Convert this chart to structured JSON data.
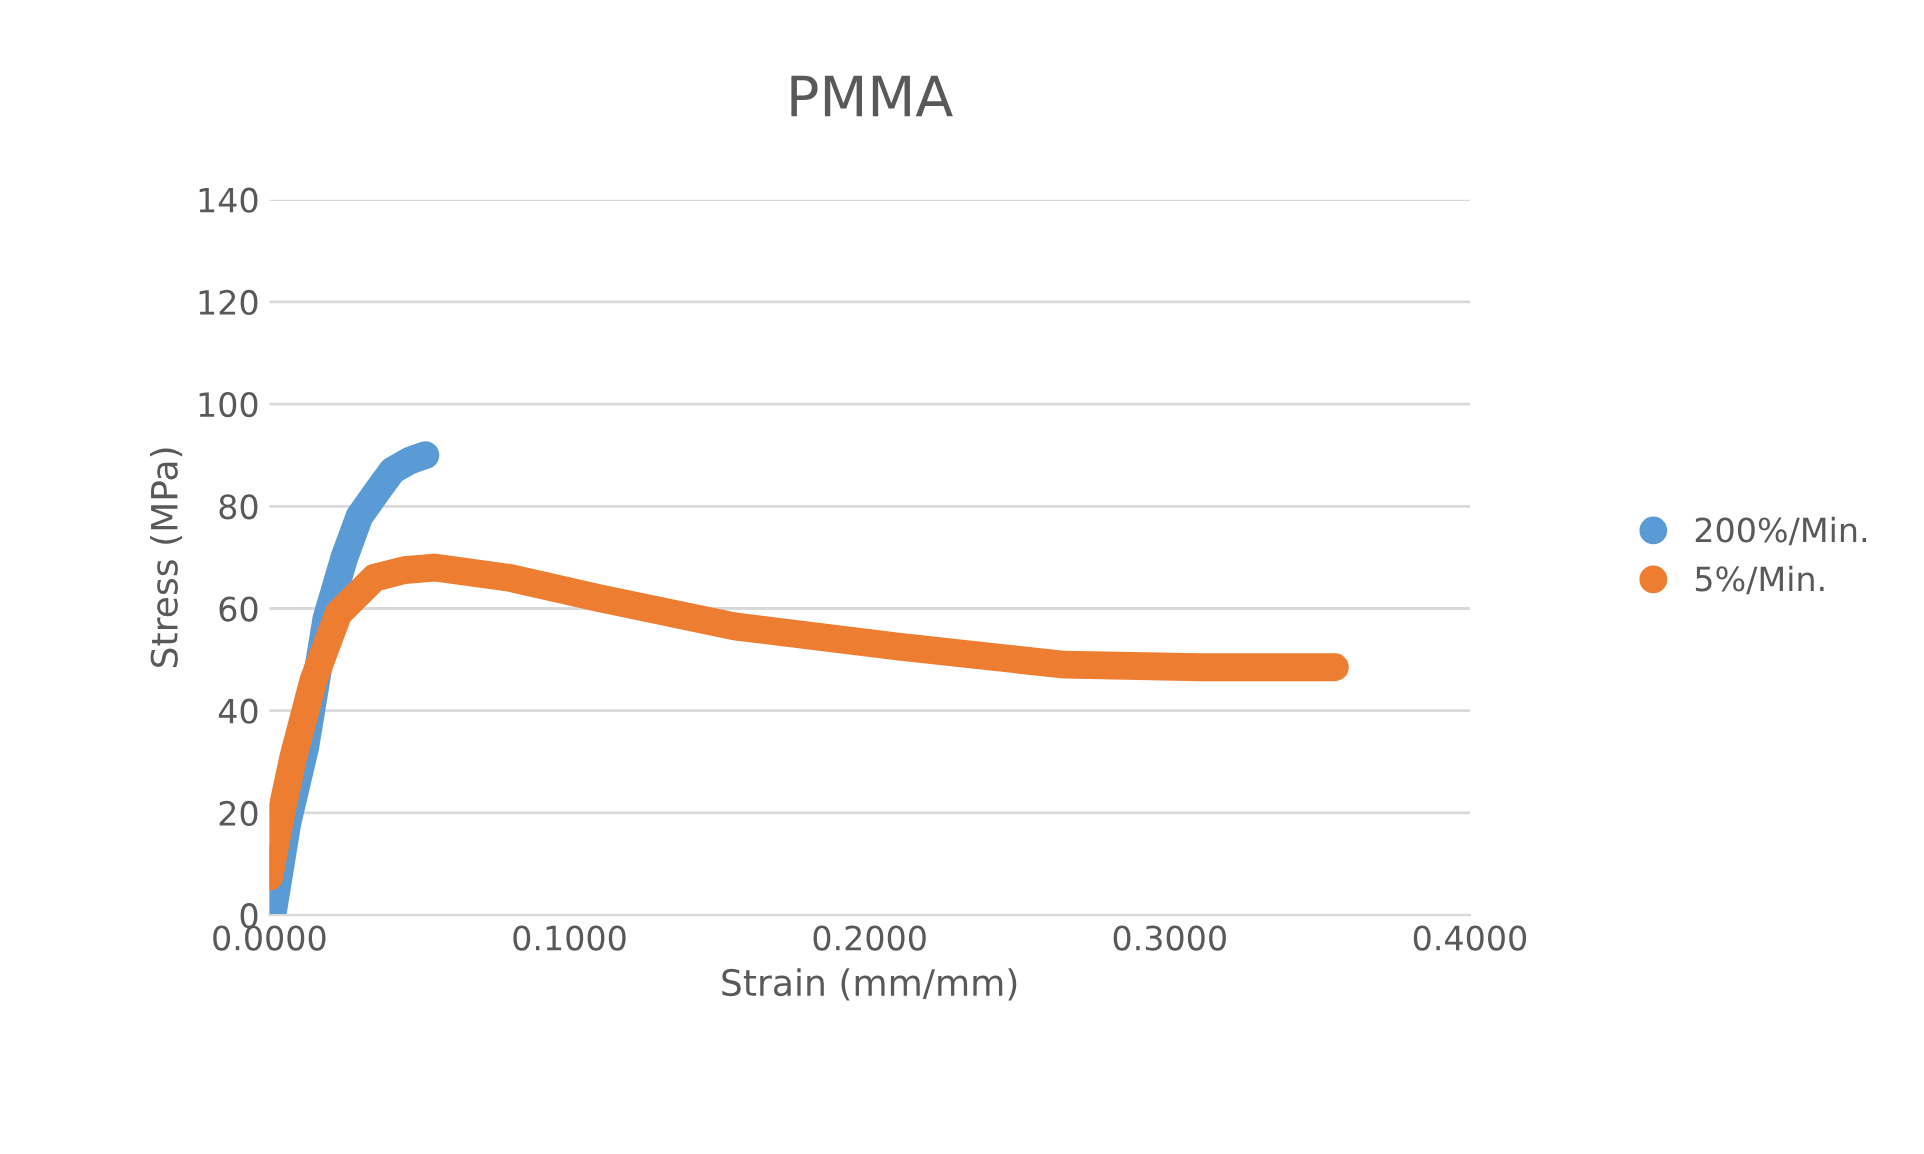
{
  "chart_data": {
    "type": "line",
    "title": "PMMA",
    "xlabel": "Strain (mm/mm)",
    "ylabel": "Stress (MPa)",
    "xlim": [
      0,
      0.4
    ],
    "xticks": [
      {
        "value": 0,
        "label": "0.0000"
      },
      {
        "value": 0.1,
        "label": "0.1000"
      },
      {
        "value": 0.2,
        "label": "0.2000"
      },
      {
        "value": 0.3,
        "label": "0.3000"
      },
      {
        "value": 0.4,
        "label": "0.4000"
      }
    ],
    "ylim": [
      0,
      140
    ],
    "yticks": [
      0,
      20,
      40,
      60,
      80,
      100,
      120,
      140
    ],
    "grid": "y",
    "legend": "right",
    "series": [
      {
        "name": "200%/Min.",
        "color": "#5b9bd5",
        "x": [
          0.0013,
          0.006,
          0.012,
          0.019,
          0.025,
          0.03,
          0.036,
          0.041,
          0.047,
          0.052
        ],
        "values": [
          1,
          18,
          33,
          58,
          70,
          78,
          83,
          87,
          89,
          90
        ]
      },
      {
        "name": "5%/Min.",
        "color": "#ed7d31",
        "x": [
          0.0,
          0.004,
          0.008,
          0.0147,
          0.023,
          0.035,
          0.045,
          0.055,
          0.08,
          0.11,
          0.155,
          0.21,
          0.265,
          0.31,
          0.355
        ],
        "values": [
          7.5,
          20,
          31,
          46,
          59,
          66,
          67.5,
          68,
          66,
          62,
          56.5,
          52.5,
          49,
          48.5,
          48.5
        ]
      }
    ]
  }
}
